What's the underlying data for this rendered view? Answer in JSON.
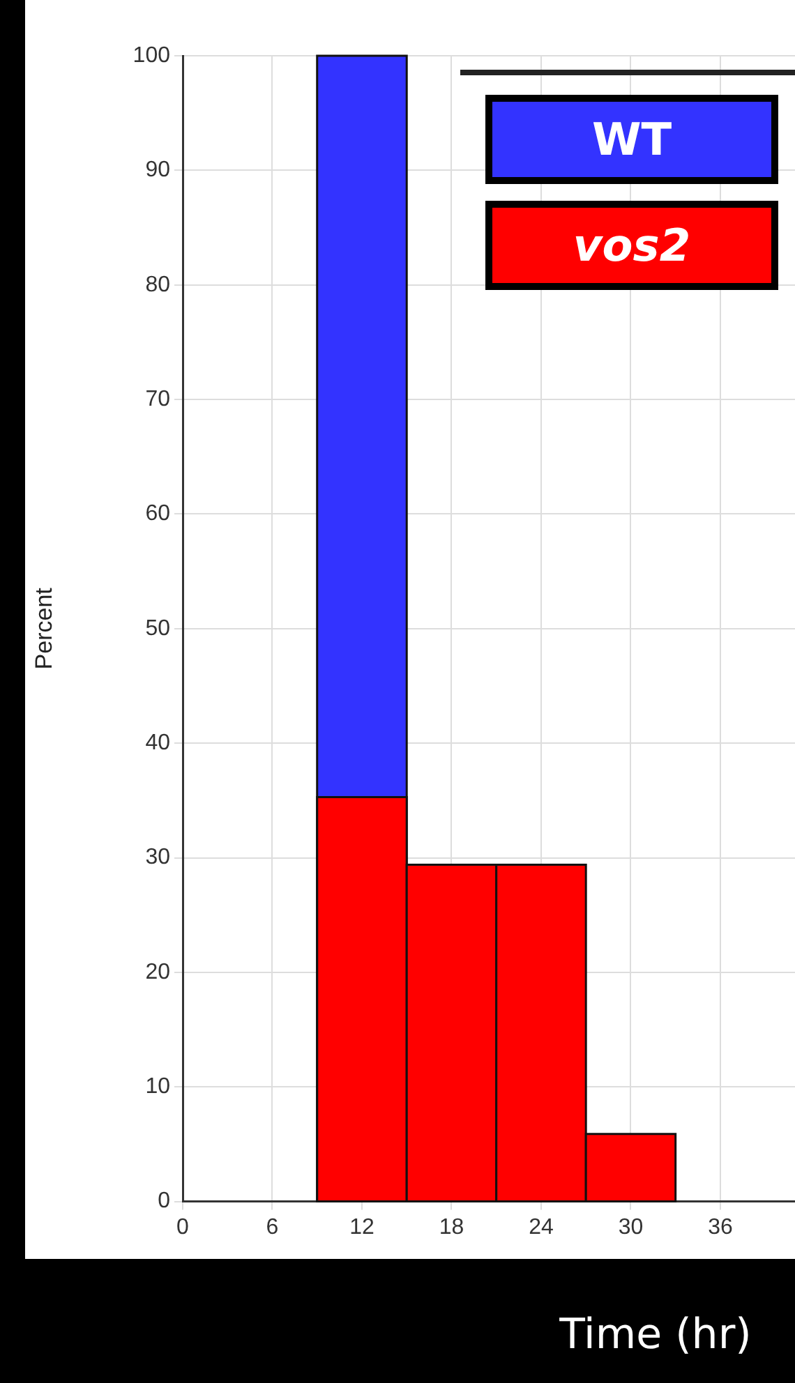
{
  "chart_data": {
    "type": "histogram",
    "xlabel": "Time (hr)",
    "ylabel": "Percent",
    "bins": [
      9,
      15,
      21,
      27,
      33
    ],
    "series": [
      {
        "name": "WT",
        "color": "#3333ff",
        "values": [
          100,
          0,
          0,
          0
        ]
      },
      {
        "name": "vos2",
        "color": "#ff0000",
        "values": [
          35.3,
          29.4,
          29.4,
          5.9
        ]
      }
    ],
    "xlim": [
      0,
      41
    ],
    "xticks": [
      0,
      6,
      12,
      18,
      24,
      30,
      36
    ],
    "ylim": [
      0,
      100
    ],
    "yticks": [
      0,
      10,
      20,
      30,
      40,
      50,
      60,
      70,
      80,
      90,
      100
    ],
    "grid": true,
    "legend": "top right"
  }
}
